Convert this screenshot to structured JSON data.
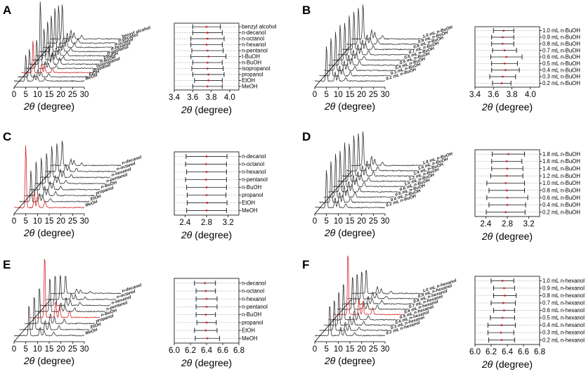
{
  "figure": {
    "background_color": "#ffffff",
    "peak_color_highlight": "#d62728",
    "trace_color": "#333333",
    "errorbar_point_color": "#d62728"
  },
  "chart_data": [
    {
      "panel": "A",
      "type": "waterfall_line",
      "x_ticks": [
        "0",
        "5",
        "10",
        "15",
        "20",
        "25",
        "30"
      ],
      "xlim": [
        0,
        30
      ],
      "xlabel_symbol": "2θ",
      "xlabel_rest": " (degree)",
      "highlight_series_index": 8,
      "series": [
        {
          "name": "benzyl alcohol",
          "peak_x": 5.0,
          "peak_height": 0.55
        },
        {
          "name": "n-decanol",
          "peak_x": 5.0,
          "peak_height": 0.6
        },
        {
          "name": "n-octanol",
          "peak_x": 5.0,
          "peak_height": 0.62
        },
        {
          "name": "n-hexanol",
          "peak_x": 5.0,
          "peak_height": 0.58
        },
        {
          "name": "n-pentanol",
          "peak_x": 5.0,
          "peak_height": 0.55
        },
        {
          "name": "t-BuOH",
          "peak_x": 5.0,
          "peak_height": 0.5
        },
        {
          "name": "n-BuOH",
          "peak_x": 5.0,
          "peak_height": 1.0
        },
        {
          "name": "isopropanol",
          "peak_x": 5.0,
          "peak_height": 0.45
        },
        {
          "name": "propanol",
          "peak_x": 5.0,
          "peak_height": 0.5
        },
        {
          "name": "EtOH",
          "peak_x": 5.0,
          "peak_height": 0.45
        },
        {
          "name": "MeOH",
          "peak_x": 5.0,
          "peak_height": 0.42
        }
      ]
    },
    {
      "panel": "A",
      "type": "errorbar",
      "x_ticks": [
        "3.4",
        "3.6",
        "3.8",
        "4.0"
      ],
      "xlim": [
        3.4,
        4.1
      ],
      "xlabel_symbol": "2θ",
      "xlabel_rest": " (degree)",
      "categories": [
        "benzyl alcohol",
        "n-decanol",
        "n-octanol",
        "n-hexanol",
        "n-pentanol",
        "t-BuOH",
        "n-BuOH",
        "isopropanol",
        "propanol",
        "EtOH",
        "MeOH"
      ],
      "values": [
        3.75,
        3.76,
        3.76,
        3.75,
        3.76,
        3.77,
        3.76,
        3.76,
        3.77,
        3.77,
        3.76
      ],
      "errors": [
        0.15,
        0.16,
        0.18,
        0.17,
        0.17,
        0.19,
        0.16,
        0.17,
        0.17,
        0.15,
        0.16
      ]
    },
    {
      "panel": "B",
      "type": "waterfall_line",
      "x_ticks": [
        "0",
        "5",
        "10",
        "15",
        "20",
        "25",
        "30"
      ],
      "xlim": [
        0,
        30
      ],
      "xlabel_symbol": "2θ",
      "xlabel_rest": " (degree)",
      "series": [
        {
          "name": "1.0 mL n-BuOH",
          "peak_x": 5.0,
          "peak_height": 0.55
        },
        {
          "name": "0.9 mL n-BuOH",
          "peak_x": 5.0,
          "peak_height": 0.58
        },
        {
          "name": "0.8 mL n-BuOH",
          "peak_x": 5.0,
          "peak_height": 0.6
        },
        {
          "name": "0.7 mL n-BuOH",
          "peak_x": 5.0,
          "peak_height": 0.62
        },
        {
          "name": "0.6 mL n-BuOH",
          "peak_x": 5.0,
          "peak_height": 0.6
        },
        {
          "name": "0.5 mL n-BuOH",
          "peak_x": 5.0,
          "peak_height": 0.65
        },
        {
          "name": "0.4 mL n-BuOH",
          "peak_x": 5.0,
          "peak_height": 0.62
        },
        {
          "name": "0.3 mL n-BuOH",
          "peak_x": 5.0,
          "peak_height": 0.6
        },
        {
          "name": "0.2 mL n-BuOH",
          "peak_x": 5.0,
          "peak_height": 0.55
        }
      ]
    },
    {
      "panel": "B",
      "type": "errorbar",
      "x_ticks": [
        "3.4",
        "3.6",
        "3.8",
        "4.0"
      ],
      "xlim": [
        3.4,
        4.1
      ],
      "xlabel_symbol": "2θ",
      "xlabel_rest": " (degree)",
      "categories": [
        "1.0 mL n-BuOH",
        "0.9 mL n-BuOH",
        "0.8 mL n-BuOH",
        "0.7 mL n-BuOH",
        "0.6 mL n-BuOH",
        "0.5 mL n-BuOH",
        "0.4 mL n-BuOH",
        "0.3 mL n-BuOH",
        "0.2 mL n-BuOH"
      ],
      "values": [
        3.71,
        3.7,
        3.7,
        3.72,
        3.74,
        3.72,
        3.73,
        3.7,
        3.69
      ],
      "errors": [
        0.11,
        0.12,
        0.12,
        0.13,
        0.17,
        0.14,
        0.15,
        0.14,
        0.1
      ]
    },
    {
      "panel": "C",
      "type": "waterfall_line",
      "x_ticks": [
        "0",
        "5",
        "10",
        "15",
        "20",
        "25",
        "30"
      ],
      "xlim": [
        0,
        30
      ],
      "xlabel_symbol": "2θ",
      "xlabel_rest": " (degree)",
      "highlight_series_index": 7,
      "series": [
        {
          "name": "n-decanol",
          "peak_x": 5.0,
          "peak_height": 0.4
        },
        {
          "name": "n-octanol",
          "peak_x": 5.0,
          "peak_height": 0.45
        },
        {
          "name": "n-hexanol",
          "peak_x": 5.0,
          "peak_height": 0.5
        },
        {
          "name": "n-pentanol",
          "peak_x": 5.0,
          "peak_height": 0.48
        },
        {
          "name": "n-BuOH",
          "peak_x": 5.0,
          "peak_height": 0.5
        },
        {
          "name": "propanol",
          "peak_x": 5.0,
          "peak_height": 0.55
        },
        {
          "name": "EtOH",
          "peak_x": 5.0,
          "peak_height": 0.5
        },
        {
          "name": "MeOH",
          "peak_x": 5.0,
          "peak_height": 1.0
        }
      ]
    },
    {
      "panel": "C",
      "type": "errorbar",
      "x_ticks": [
        "2.4",
        "2.8",
        "3.2"
      ],
      "xlim": [
        2.2,
        3.4
      ],
      "xlabel_symbol": "2θ",
      "xlabel_rest": " (degree)",
      "categories": [
        "n-decanol",
        "n-octanol",
        "n-hexanol",
        "n-pentanol",
        "n-BuOH",
        "propanol",
        "EtOH",
        "MeOH"
      ],
      "values": [
        2.8,
        2.79,
        2.8,
        2.79,
        2.8,
        2.8,
        2.81,
        2.8
      ],
      "errors": [
        0.38,
        0.38,
        0.37,
        0.38,
        0.37,
        0.36,
        0.37,
        0.37
      ]
    },
    {
      "panel": "D",
      "type": "waterfall_line",
      "x_ticks": [
        "0",
        "5",
        "10",
        "15",
        "20",
        "25",
        "30"
      ],
      "xlim": [
        0,
        30
      ],
      "xlabel_symbol": "2θ",
      "xlabel_rest": " (degree)",
      "series": [
        {
          "name": "1.8 mL n-BuOH",
          "peak_x": 5.0,
          "peak_height": 0.55
        },
        {
          "name": "1.6 mL n-BuOH",
          "peak_x": 5.0,
          "peak_height": 0.6
        },
        {
          "name": "1.4 mL n-BuOH",
          "peak_x": 5.0,
          "peak_height": 0.65
        },
        {
          "name": "1.2 mL n-BuOH",
          "peak_x": 5.0,
          "peak_height": 0.6
        },
        {
          "name": "1.0 mL n-BuOH",
          "peak_x": 5.0,
          "peak_height": 0.7
        },
        {
          "name": "0.8 mL n-BuOH",
          "peak_x": 5.0,
          "peak_height": 0.65
        },
        {
          "name": "0.6 mL n-BuOH",
          "peak_x": 5.0,
          "peak_height": 0.7
        },
        {
          "name": "0.4 mL n-BuOH",
          "peak_x": 5.0,
          "peak_height": 0.66
        },
        {
          "name": "0.2 mL n-BuOH",
          "peak_x": 5.0,
          "peak_height": 0.6
        }
      ]
    },
    {
      "panel": "D",
      "type": "errorbar",
      "x_ticks": [
        "2.4",
        "2.8",
        "3.2"
      ],
      "xlim": [
        2.2,
        3.4
      ],
      "xlabel_symbol": "2θ",
      "xlabel_rest": " (degree)",
      "categories": [
        "1.8 mL n-BuOH",
        "1.6 mL n-BuOH",
        "1.4 mL n-BuOH",
        "1.2 mL n-BuOH",
        "1.0 mL n-BuOH",
        "0.8 mL n-BuOH",
        "0.6 mL n-BuOH",
        "0.4 mL n-BuOH",
        "0.2 mL n-BuOH"
      ],
      "values": [
        2.82,
        2.79,
        2.8,
        2.79,
        2.77,
        2.79,
        2.8,
        2.8,
        2.77
      ],
      "errors": [
        0.3,
        0.28,
        0.29,
        0.3,
        0.35,
        0.33,
        0.38,
        0.34,
        0.36
      ]
    },
    {
      "panel": "E",
      "type": "waterfall_line",
      "x_ticks": [
        "0",
        "5",
        "10",
        "15",
        "20",
        "25",
        "30"
      ],
      "xlim": [
        0,
        30
      ],
      "xlabel_symbol": "2θ",
      "xlabel_rest": " (degree)",
      "highlight_series_index": 4,
      "series": [
        {
          "name": "n-decanol",
          "peak_x": 6.4,
          "peak_height": 0.3
        },
        {
          "name": "n-octanol",
          "peak_x": 6.4,
          "peak_height": 0.4
        },
        {
          "name": "n-hexanol",
          "peak_x": 6.4,
          "peak_height": 0.5
        },
        {
          "name": "n-pentanol",
          "peak_x": 6.4,
          "peak_height": 0.55
        },
        {
          "name": "n-BuOH",
          "peak_x": 6.4,
          "peak_height": 1.0
        },
        {
          "name": "propanol",
          "peak_x": 6.4,
          "peak_height": 0.6
        },
        {
          "name": "EtOH",
          "peak_x": 6.4,
          "peak_height": 0.55
        },
        {
          "name": "MeOH",
          "peak_x": 6.4,
          "peak_height": 0.5
        }
      ]
    },
    {
      "panel": "E",
      "type": "errorbar",
      "x_ticks": [
        "6.0",
        "6.2",
        "6.4",
        "6.6",
        "6.8"
      ],
      "xlim": [
        6.0,
        6.8
      ],
      "xlabel_symbol": "2θ",
      "xlabel_rest": " (degree)",
      "categories": [
        "n-decanol",
        "n-octanol",
        "n-hexanol",
        "n-pentanol",
        "n-BuOH",
        "propanol",
        "EtOH",
        "MeOH"
      ],
      "values": [
        6.38,
        6.39,
        6.4,
        6.4,
        6.39,
        6.4,
        6.39,
        6.41
      ],
      "errors": [
        0.13,
        0.12,
        0.13,
        0.13,
        0.12,
        0.12,
        0.14,
        0.15
      ]
    },
    {
      "panel": "F",
      "type": "waterfall_line",
      "x_ticks": [
        "0",
        "5",
        "10",
        "15",
        "20",
        "25",
        "30"
      ],
      "xlim": [
        0,
        30
      ],
      "xlabel_symbol": "2θ",
      "xlabel_rest": " (degree)",
      "highlight_series_index": 4,
      "series": [
        {
          "name": "1.0 mL n-hexanol",
          "peak_x": 6.4,
          "peak_height": 0.4
        },
        {
          "name": "0.9 mL n-hexanol",
          "peak_x": 6.4,
          "peak_height": 0.45
        },
        {
          "name": "0.8 mL n-hexanol",
          "peak_x": 6.4,
          "peak_height": 0.5
        },
        {
          "name": "0.7 mL n-hexanol",
          "peak_x": 6.4,
          "peak_height": 0.55
        },
        {
          "name": "0.6 mL n-hexanol",
          "peak_x": 6.4,
          "peak_height": 1.0
        },
        {
          "name": "0.5 mL n-hexanol",
          "peak_x": 6.4,
          "peak_height": 0.6
        },
        {
          "name": "0.4 mL n-hexanol",
          "peak_x": 6.4,
          "peak_height": 0.55
        },
        {
          "name": "0.3 mL n-hexanol",
          "peak_x": 6.4,
          "peak_height": 0.5
        },
        {
          "name": "0.2 mL n-hexanol",
          "peak_x": 6.4,
          "peak_height": 0.5
        }
      ]
    },
    {
      "panel": "F",
      "type": "errorbar",
      "x_ticks": [
        "6.0",
        "6.2",
        "6.4",
        "6.6",
        "6.8"
      ],
      "xlim": [
        6.0,
        6.8
      ],
      "xlabel_symbol": "2θ",
      "xlabel_rest": " (degree)",
      "categories": [
        "1.0 mL n-hexanol",
        "0.9 mL n-hexanol",
        "0.8 mL n-hexanol",
        "0.7 mL n-hexanol",
        "0.6 mL n-hexanol",
        "0.5 mL n-hexanol",
        "0.4 mL n-hexanol",
        "0.3 mL n-hexanol",
        "0.2 mL n-hexanol"
      ],
      "values": [
        6.34,
        6.36,
        6.37,
        6.35,
        6.36,
        6.34,
        6.33,
        6.32,
        6.33
      ],
      "errors": [
        0.14,
        0.13,
        0.14,
        0.15,
        0.13,
        0.15,
        0.17,
        0.16,
        0.16
      ]
    }
  ]
}
